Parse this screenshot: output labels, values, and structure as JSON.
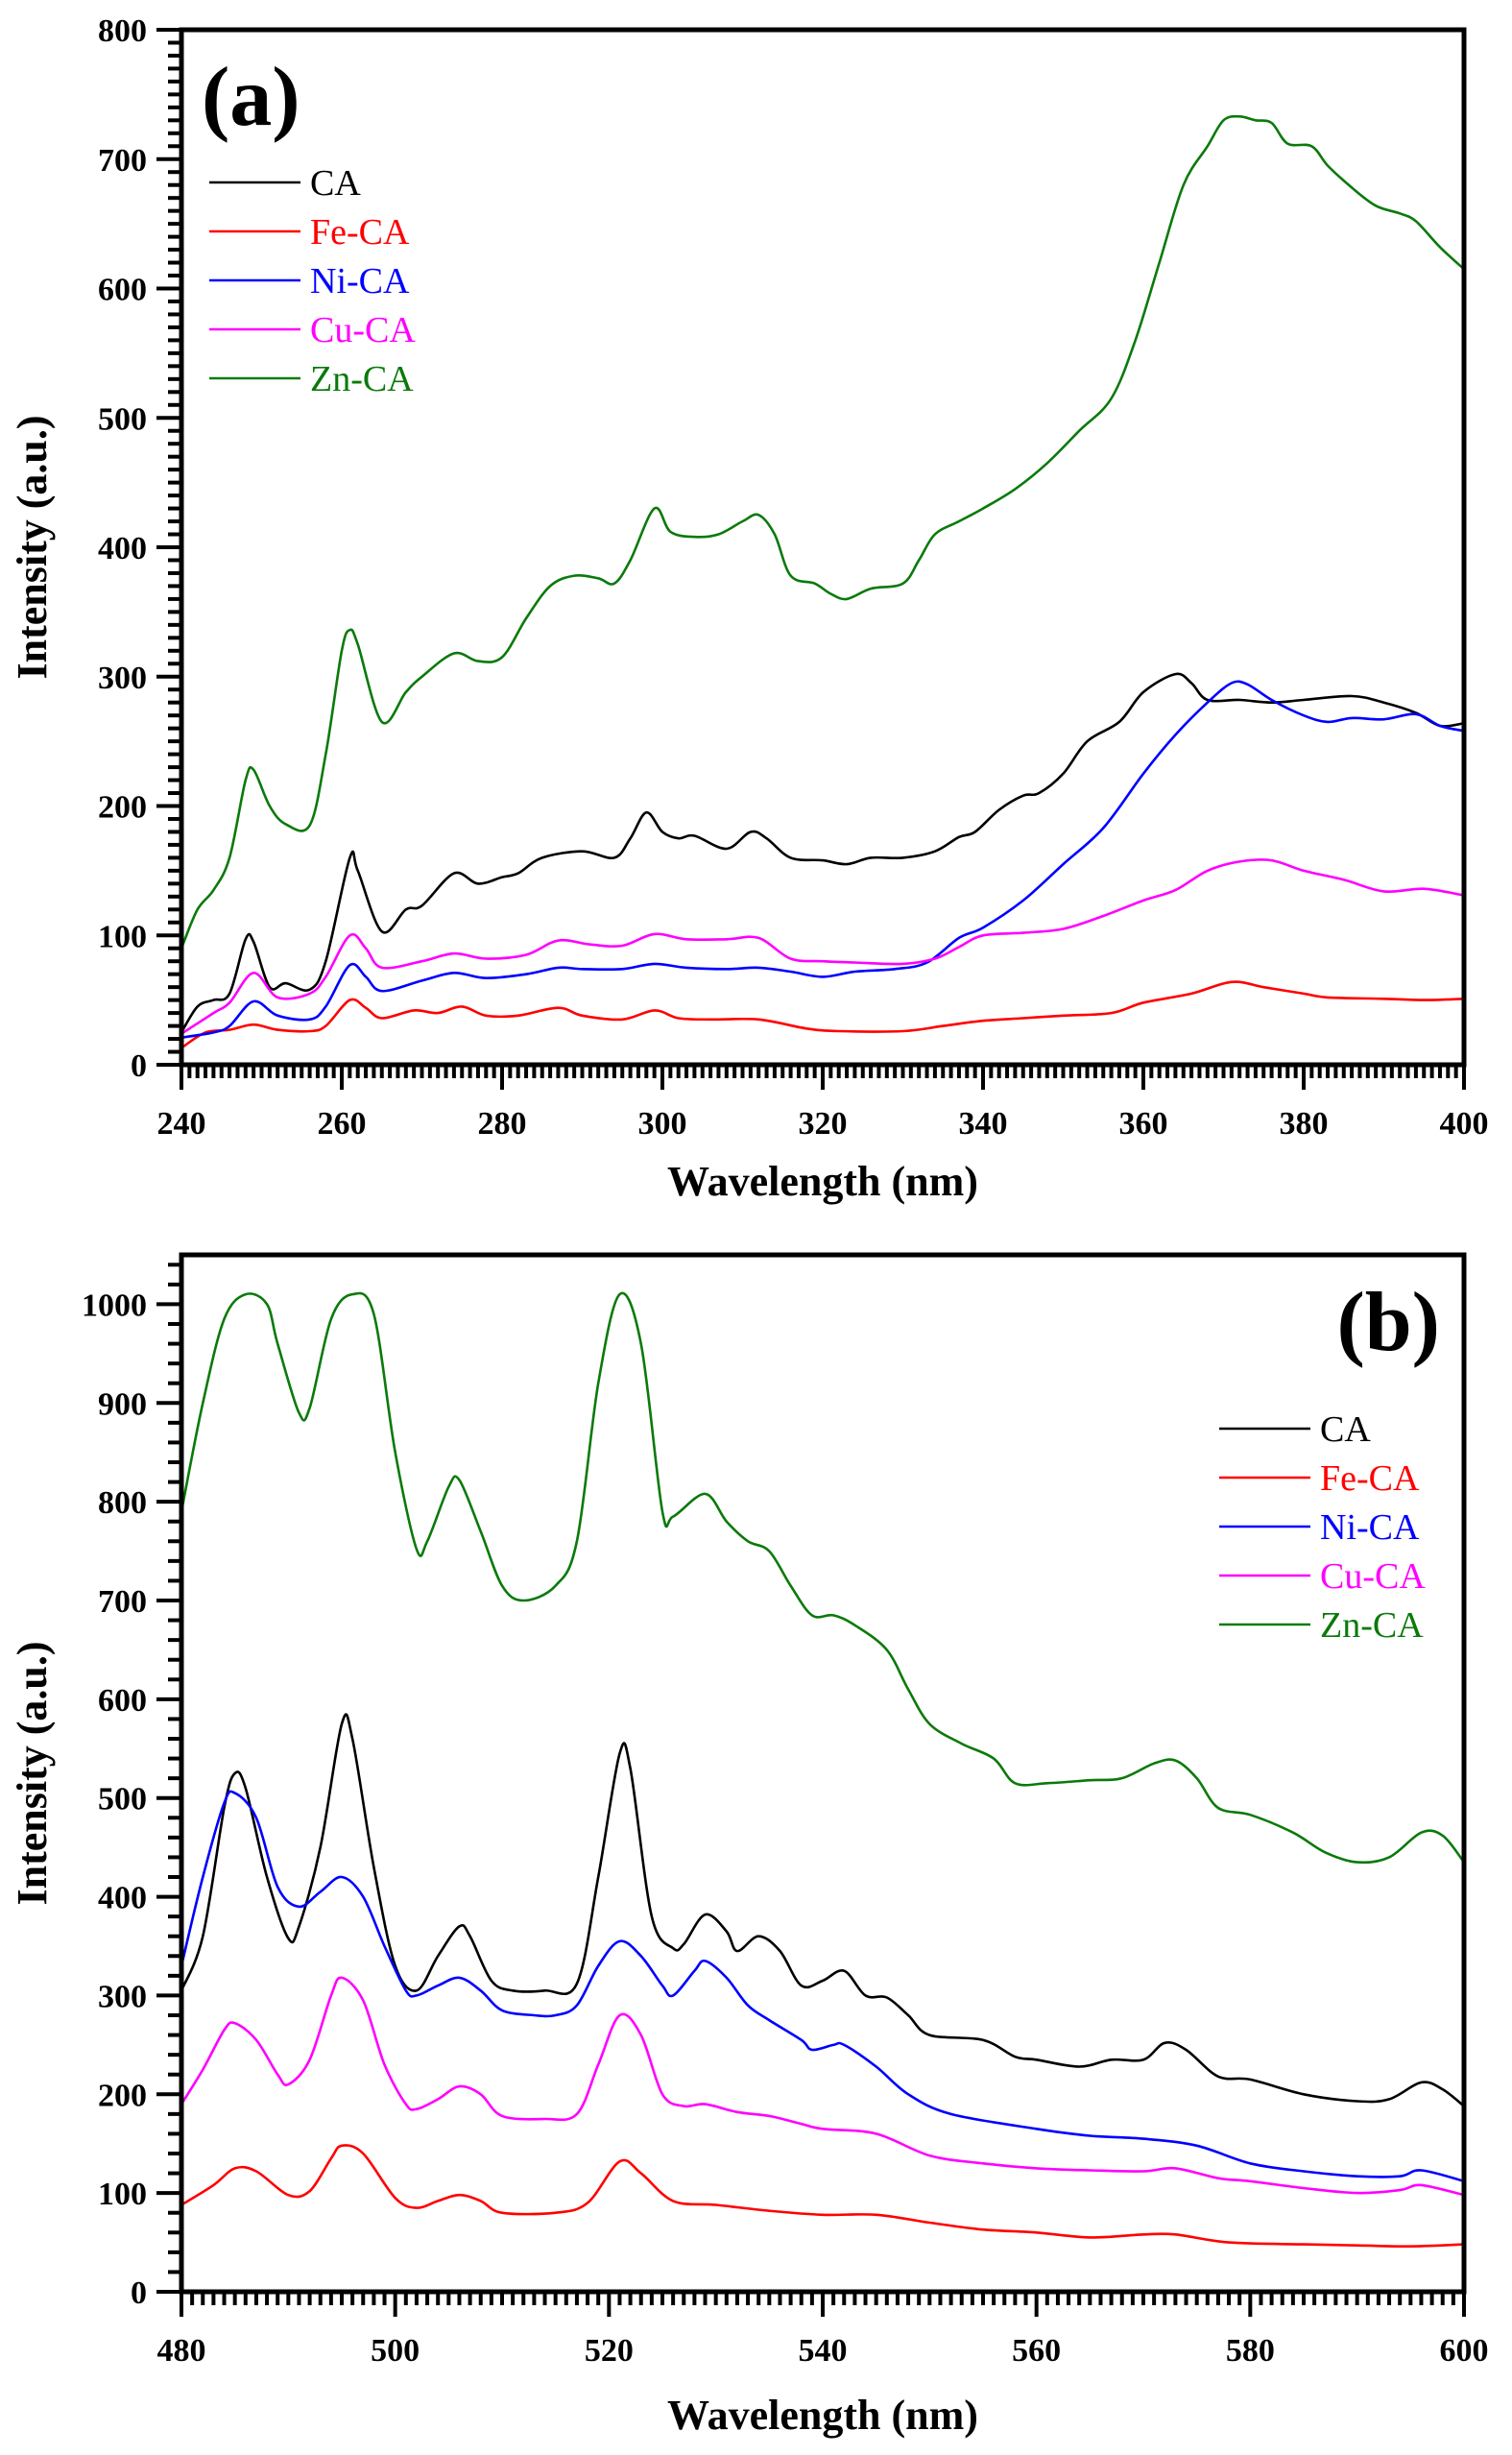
{
  "chart_data": [
    {
      "type": "line",
      "panel_label": "(a)",
      "title": "",
      "xlabel": "Wavelength (nm)",
      "ylabel": "Intensity (a.u.)",
      "xlim": [
        240,
        400
      ],
      "ylim": [
        0,
        800
      ],
      "xticks": [
        240,
        260,
        280,
        300,
        320,
        340,
        360,
        380,
        400
      ],
      "yticks": [
        0,
        100,
        200,
        300,
        400,
        500,
        600,
        700,
        800
      ],
      "grid": false,
      "legend_position": "top-left",
      "series": [
        {
          "name": "CA",
          "color": "#000000",
          "x": [
            240,
            242,
            244,
            246,
            248,
            249,
            251,
            253,
            256,
            258,
            261,
            262,
            265,
            268,
            270,
            274,
            277,
            280,
            282,
            285,
            290,
            294,
            296,
            298,
            300,
            302,
            304,
            308,
            311,
            313,
            316,
            320,
            323,
            326,
            330,
            334,
            337,
            339,
            342,
            345,
            347,
            350,
            353,
            357,
            360,
            364,
            366,
            368,
            372,
            376,
            380,
            386,
            390,
            394,
            397,
            400
          ],
          "y": [
            25,
            45,
            50,
            55,
            97,
            95,
            60,
            63,
            58,
            80,
            160,
            150,
            103,
            120,
            123,
            148,
            140,
            145,
            148,
            160,
            165,
            160,
            175,
            195,
            180,
            175,
            177,
            167,
            180,
            175,
            160,
            158,
            155,
            160,
            160,
            165,
            176,
            180,
            197,
            208,
            210,
            225,
            250,
            265,
            288,
            302,
            295,
            282,
            282,
            280,
            282,
            285,
            280,
            272,
            262,
            264
          ]
        },
        {
          "name": "Fe-CA",
          "color": "#ff0000",
          "x": [
            240,
            243,
            246,
            249,
            252,
            256,
            258,
            261,
            263,
            265,
            269,
            272,
            275,
            278,
            282,
            287,
            290,
            295,
            299,
            302,
            306,
            312,
            318,
            322,
            330,
            335,
            340,
            345,
            350,
            356,
            360,
            366,
            371,
            375,
            380,
            383,
            390,
            395,
            400
          ],
          "y": [
            13,
            25,
            27,
            31,
            27,
            26,
            30,
            50,
            44,
            36,
            42,
            40,
            45,
            38,
            38,
            44,
            38,
            35,
            42,
            36,
            35,
            35,
            28,
            26,
            26,
            30,
            34,
            36,
            38,
            40,
            48,
            55,
            64,
            60,
            55,
            52,
            51,
            50,
            51
          ]
        },
        {
          "name": "Ni-CA",
          "color": "#0000ff",
          "x": [
            240,
            244,
            246,
            249,
            252,
            256,
            258,
            261,
            263,
            265,
            270,
            274,
            278,
            283,
            287,
            290,
            295,
            299,
            303,
            308,
            312,
            316,
            320,
            324,
            329,
            333,
            337,
            340,
            345,
            350,
            355,
            360,
            364,
            368,
            371,
            373,
            376,
            380,
            383,
            386,
            390,
            394,
            397,
            400
          ],
          "y": [
            21,
            25,
            30,
            49,
            38,
            35,
            45,
            77,
            68,
            57,
            65,
            71,
            67,
            70,
            75,
            74,
            74,
            78,
            75,
            74,
            75,
            72,
            68,
            72,
            74,
            79,
            98,
            106,
            127,
            155,
            183,
            225,
            255,
            280,
            295,
            294,
            282,
            270,
            265,
            268,
            267,
            271,
            262,
            258
          ]
        },
        {
          "name": "Cu-CA",
          "color": "#ff00ff",
          "x": [
            240,
            244,
            246,
            249,
            252,
            256,
            258,
            261,
            263,
            265,
            270,
            274,
            278,
            283,
            287,
            291,
            295,
            299,
            303,
            308,
            312,
            316,
            320,
            324,
            330,
            334,
            337,
            340,
            345,
            350,
            355,
            360,
            364,
            368,
            372,
            376,
            380,
            385,
            390,
            395,
            400
          ],
          "y": [
            24,
            40,
            48,
            71,
            52,
            55,
            68,
            100,
            90,
            75,
            80,
            86,
            82,
            85,
            96,
            93,
            92,
            101,
            97,
            97,
            98,
            82,
            80,
            79,
            78,
            82,
            91,
            100,
            102,
            105,
            115,
            127,
            135,
            150,
            157,
            158,
            150,
            143,
            134,
            136,
            131
          ]
        },
        {
          "name": "Zn-CA",
          "color": "#0a7a0a",
          "x": [
            240,
            242,
            244,
            246,
            248,
            249,
            251,
            253,
            256,
            258,
            260,
            261,
            262,
            265,
            268,
            270,
            274,
            277,
            280,
            283,
            286,
            289,
            292,
            294,
            296,
            299,
            301,
            304,
            307,
            310,
            312,
            314,
            316,
            319,
            321,
            323,
            326,
            330,
            332,
            334,
            337,
            340,
            344,
            348,
            352,
            356,
            359,
            362,
            365,
            368,
            370,
            372,
            374,
            376,
            378,
            381,
            383,
            386,
            389,
            392,
            394,
            397,
            400
          ],
          "y": [
            90,
            120,
            135,
            160,
            220,
            228,
            200,
            186,
            185,
            240,
            320,
            336,
            325,
            265,
            288,
            300,
            318,
            312,
            315,
            345,
            370,
            378,
            376,
            372,
            390,
            430,
            412,
            408,
            410,
            420,
            425,
            410,
            378,
            372,
            364,
            360,
            368,
            372,
            390,
            410,
            420,
            430,
            445,
            465,
            490,
            515,
            560,
            620,
            680,
            710,
            730,
            733,
            730,
            728,
            712,
            710,
            695,
            678,
            664,
            658,
            652,
            632,
            615
          ]
        }
      ]
    },
    {
      "type": "line",
      "panel_label": "(b)",
      "title": "",
      "xlabel": "Wavelength (nm)",
      "ylabel": "Intensity (a.u.)",
      "xlim": [
        480,
        600
      ],
      "ylim": [
        0,
        1050
      ],
      "xticks": [
        480,
        500,
        520,
        540,
        560,
        580,
        600
      ],
      "yticks": [
        0,
        100,
        200,
        300,
        400,
        500,
        600,
        700,
        800,
        900,
        1000
      ],
      "grid": false,
      "legend_position": "right",
      "series": [
        {
          "name": "CA",
          "color": "#000000",
          "x": [
            480,
            482,
            484,
            485,
            486,
            488,
            490,
            491,
            493,
            495,
            496,
            498,
            500,
            502,
            504,
            506,
            507,
            509,
            511,
            514,
            517,
            519,
            521,
            522,
            524,
            526,
            527,
            529,
            531,
            532,
            534,
            536,
            538,
            540,
            542,
            544,
            546,
            548,
            550,
            555,
            558,
            560,
            564,
            567,
            570,
            572,
            574,
            577,
            580,
            585,
            590,
            593,
            596,
            598,
            600
          ],
          "y": [
            305,
            360,
            490,
            525,
            510,
            420,
            358,
            370,
            450,
            575,
            560,
            430,
            330,
            305,
            340,
            370,
            360,
            315,
            305,
            305,
            312,
            420,
            545,
            530,
            380,
            348,
            352,
            382,
            365,
            345,
            360,
            345,
            310,
            315,
            325,
            300,
            298,
            280,
            260,
            255,
            238,
            235,
            228,
            235,
            235,
            252,
            245,
            218,
            215,
            200,
            193,
            195,
            212,
            205,
            188
          ]
        },
        {
          "name": "Fe-CA",
          "color": "#ff0000",
          "x": [
            480,
            483,
            485,
            487,
            490,
            492,
            494,
            495,
            497,
            500,
            502,
            504,
            506,
            508,
            510,
            515,
            518,
            521,
            523,
            526,
            530,
            535,
            540,
            545,
            550,
            555,
            560,
            565,
            570,
            573,
            578,
            585,
            590,
            595,
            600
          ],
          "y": [
            88,
            108,
            125,
            122,
            98,
            102,
            135,
            148,
            140,
            95,
            85,
            92,
            98,
            92,
            80,
            80,
            90,
            132,
            120,
            92,
            88,
            82,
            78,
            78,
            70,
            63,
            60,
            55,
            58,
            58,
            50,
            48,
            47,
            46,
            48
          ]
        },
        {
          "name": "Ni-CA",
          "color": "#0000ff",
          "x": [
            480,
            482,
            484,
            485,
            487,
            489,
            491,
            493,
            495,
            497,
            499,
            501,
            502,
            504,
            506,
            508,
            510,
            513,
            515,
            517,
            519,
            521,
            523,
            525,
            526,
            528,
            529,
            531,
            533,
            535,
            538,
            539,
            541,
            542,
            545,
            548,
            552,
            560,
            565,
            570,
            575,
            580,
            585,
            590,
            594,
            596,
            600
          ],
          "y": [
            330,
            420,
            495,
            505,
            480,
            410,
            390,
            405,
            420,
            400,
            350,
            305,
            300,
            310,
            318,
            305,
            285,
            280,
            280,
            290,
            330,
            355,
            340,
            310,
            300,
            325,
            335,
            318,
            290,
            275,
            255,
            245,
            250,
            250,
            228,
            200,
            180,
            165,
            158,
            155,
            148,
            130,
            122,
            117,
            117,
            123,
            112
          ]
        },
        {
          "name": "Cu-CA",
          "color": "#ff00ff",
          "x": [
            480,
            482,
            484,
            485,
            487,
            489,
            490,
            492,
            494,
            495,
            497,
            499,
            501,
            502,
            504,
            506,
            508,
            510,
            514,
            517,
            519,
            521,
            523,
            525,
            527,
            529,
            532,
            535,
            538,
            540,
            545,
            550,
            555,
            560,
            565,
            570,
            573,
            577,
            580,
            585,
            590,
            594,
            596,
            600
          ],
          "y": [
            190,
            225,
            265,
            272,
            255,
            220,
            210,
            235,
            300,
            318,
            295,
            230,
            190,
            185,
            195,
            208,
            200,
            178,
            175,
            180,
            230,
            280,
            260,
            200,
            188,
            190,
            182,
            178,
            170,
            165,
            160,
            138,
            130,
            125,
            123,
            122,
            125,
            115,
            112,
            105,
            100,
            103,
            108,
            98
          ]
        },
        {
          "name": "Zn-CA",
          "color": "#0a7a0a",
          "x": [
            480,
            482,
            484,
            486,
            488,
            489,
            491,
            492,
            494,
            496,
            498,
            500,
            502,
            503,
            505,
            506,
            508,
            510,
            512,
            515,
            517,
            519,
            521,
            523,
            525,
            526,
            529,
            531,
            533,
            535,
            537,
            539,
            541,
            543,
            546,
            548,
            550,
            553,
            556,
            558,
            561,
            565,
            568,
            571,
            573,
            575,
            577,
            580,
            584,
            587,
            590,
            593,
            596,
            598,
            600
          ],
          "y": [
            790,
            900,
            985,
            1010,
            1000,
            960,
            890,
            895,
            985,
            1010,
            990,
            850,
            752,
            760,
            815,
            822,
            770,
            715,
            700,
            715,
            760,
            920,
            1010,
            960,
            790,
            785,
            808,
            780,
            760,
            750,
            715,
            685,
            685,
            675,
            650,
            610,
            575,
            555,
            540,
            515,
            515,
            518,
            520,
            535,
            538,
            520,
            490,
            483,
            465,
            445,
            435,
            440,
            465,
            462,
            435
          ]
        }
      ]
    }
  ]
}
